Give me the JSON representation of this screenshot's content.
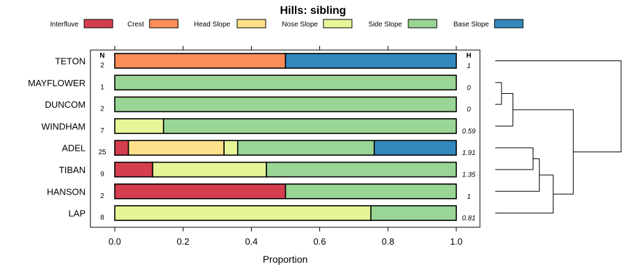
{
  "chart_data": {
    "type": "bar",
    "orientation": "horizontal",
    "stacked": true,
    "title": "Hills: sibling",
    "xlabel": "Proportion",
    "ylabel": "",
    "xlim": [
      0,
      1
    ],
    "x_ticks": [
      0,
      0.2,
      0.4,
      0.6,
      0.8,
      1
    ],
    "x_tick_labels": [
      "0.0",
      "0.2",
      "0.4",
      "0.6",
      "0.8",
      "1.0"
    ],
    "legend_position": "top",
    "n_header": "N",
    "h_header": "H",
    "series": [
      {
        "name": "Interfluve",
        "color": "#D53E4F"
      },
      {
        "name": "Crest",
        "color": "#FC8D59"
      },
      {
        "name": "Head Slope",
        "color": "#FEE08B"
      },
      {
        "name": "Nose Slope",
        "color": "#E6F598"
      },
      {
        "name": "Side Slope",
        "color": "#99D594"
      },
      {
        "name": "Base Slope",
        "color": "#3288BD"
      }
    ],
    "categories": [
      "TETON",
      "MAYFLOWER",
      "DUNCOM",
      "WINDHAM",
      "ADEL",
      "TIBAN",
      "HANSON",
      "LAP"
    ],
    "rows": [
      {
        "label": "TETON",
        "n": "2",
        "h": "1",
        "values": [
          0,
          0.5,
          0,
          0,
          0,
          0.5
        ]
      },
      {
        "label": "MAYFLOWER",
        "n": "1",
        "h": "0",
        "values": [
          0,
          0,
          0,
          0,
          1,
          0
        ]
      },
      {
        "label": "DUNCOM",
        "n": "2",
        "h": "0",
        "values": [
          0,
          0,
          0,
          0,
          1,
          0
        ]
      },
      {
        "label": "WINDHAM",
        "n": "7",
        "h": "0.59",
        "values": [
          0,
          0,
          0,
          0.143,
          0.857,
          0
        ]
      },
      {
        "label": "ADEL",
        "n": "25",
        "h": "1.91",
        "values": [
          0.04,
          0,
          0.28,
          0.04,
          0.4,
          0.24
        ]
      },
      {
        "label": "TIBAN",
        "n": "9",
        "h": "1.35",
        "values": [
          0.111,
          0,
          0,
          0.333,
          0.556,
          0
        ]
      },
      {
        "label": "HANSON",
        "n": "2",
        "h": "1",
        "values": [
          0.5,
          0,
          0,
          0,
          0.5,
          0
        ]
      },
      {
        "label": "LAP",
        "n": "8",
        "h": "0.81",
        "values": [
          0,
          0,
          0,
          0.75,
          0.25,
          0
        ]
      }
    ],
    "dendrogram": {
      "merges": [
        {
          "a": "MAYFLOWER",
          "b": "DUNCOM",
          "height": 0.05
        },
        {
          "a": "ADEL",
          "b": "TIBAN",
          "height": 0.3
        },
        {
          "a": "m1",
          "b": "WINDHAM",
          "height": 0.14
        },
        {
          "a": "m2",
          "b": "HANSON",
          "height": 0.35
        },
        {
          "a": "m4",
          "b": "LAP",
          "height": 0.46
        },
        {
          "a": "m3",
          "b": "m5",
          "height": 0.62
        },
        {
          "a": "TETON",
          "b": "m6",
          "height": 1.0
        }
      ]
    }
  }
}
